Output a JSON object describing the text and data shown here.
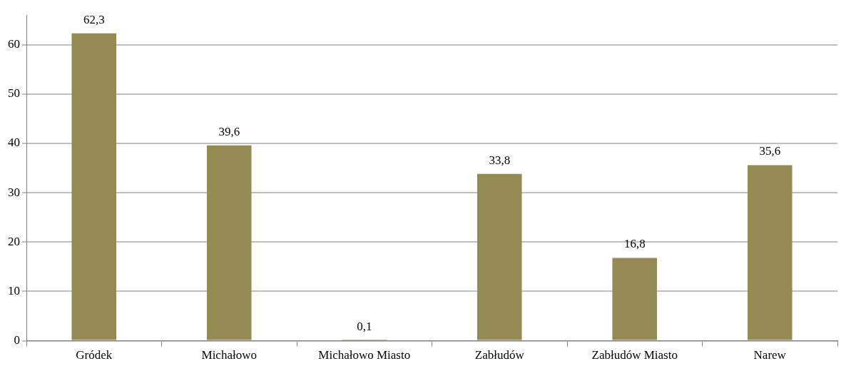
{
  "chart_data": {
    "type": "bar",
    "categories": [
      "Gródek",
      "Michałowo",
      "Michałowo Miasto",
      "Zabłudów",
      "Zabłudów Miasto",
      "Narew"
    ],
    "values": [
      62.3,
      39.6,
      0.1,
      33.8,
      16.8,
      35.6
    ],
    "value_labels": [
      "62,3",
      "39,6",
      "0,1",
      "33,8",
      "16,8",
      "35,6"
    ],
    "color": "#948a54",
    "ylim": [
      0,
      66
    ],
    "yticks": [
      0,
      10,
      20,
      30,
      40,
      50,
      60
    ],
    "grid": "y",
    "legend": false
  }
}
